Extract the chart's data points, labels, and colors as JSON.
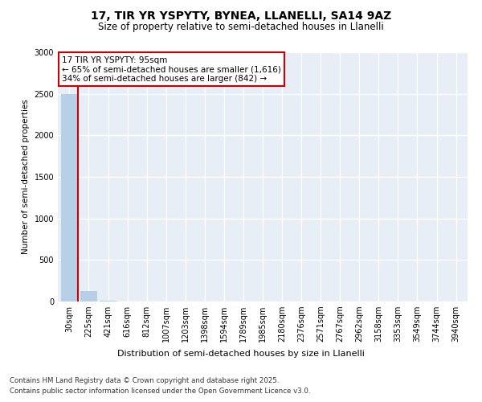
{
  "title1": "17, TIR YR YSPYTY, BYNEA, LLANELLI, SA14 9AZ",
  "title2": "Size of property relative to semi-detached houses in Llanelli",
  "xlabel": "Distribution of semi-detached houses by size in Llanelli",
  "ylabel": "Number of semi-detached properties",
  "bar_color": "#b8cfe8",
  "annotation_box_color": "#cc0000",
  "plot_bg_color": "#e8eef5",
  "categories": [
    "30sqm",
    "225sqm",
    "421sqm",
    "616sqm",
    "812sqm",
    "1007sqm",
    "1203sqm",
    "1398sqm",
    "1594sqm",
    "1789sqm",
    "1985sqm",
    "2180sqm",
    "2376sqm",
    "2571sqm",
    "2767sqm",
    "2962sqm",
    "3158sqm",
    "3353sqm",
    "3549sqm",
    "3744sqm",
    "3940sqm"
  ],
  "values": [
    2500,
    130,
    5,
    2,
    1,
    1,
    1,
    1,
    1,
    1,
    1,
    1,
    1,
    1,
    1,
    1,
    1,
    1,
    1,
    1,
    1
  ],
  "annotation_title": "17 TIR YR YSPYTY: 95sqm",
  "annotation_line1": "← 65% of semi-detached houses are smaller (1,616)",
  "annotation_line2": "34% of semi-detached houses are larger (842) →",
  "property_bar_index": 0,
  "property_line_x": 0.45,
  "ylim": [
    0,
    3000
  ],
  "yticks": [
    0,
    500,
    1000,
    1500,
    2000,
    2500,
    3000
  ],
  "footer_line1": "Contains HM Land Registry data © Crown copyright and database right 2025.",
  "footer_line2": "Contains public sector information licensed under the Open Government Licence v3.0."
}
